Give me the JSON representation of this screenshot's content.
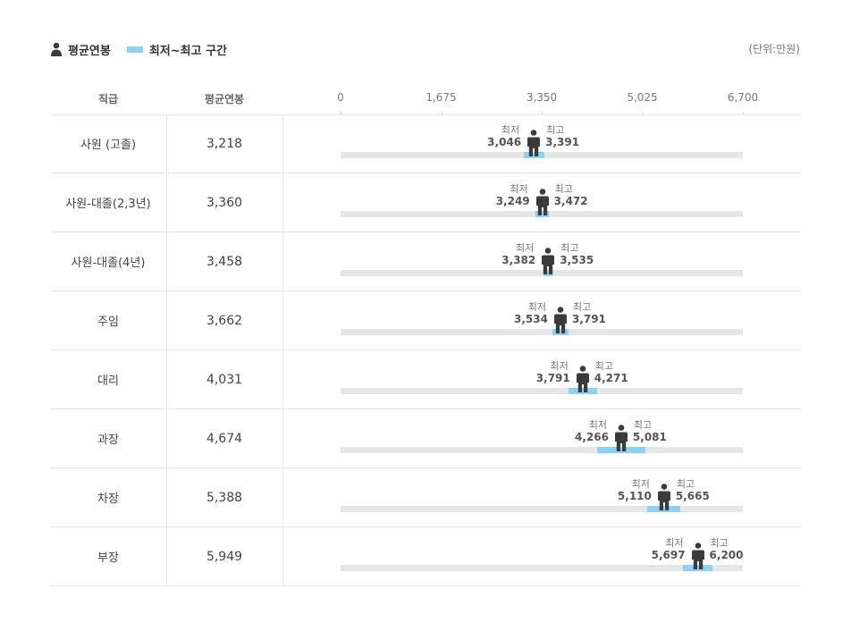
{
  "legend": {
    "avg_label": "평균연봉",
    "range_label": "최저~최고 구간"
  },
  "unit": "(단위:만원)",
  "header": {
    "col_grade": "직급",
    "col_avg": "평균연봉"
  },
  "labels": {
    "min": "최저",
    "max": "최고"
  },
  "colors": {
    "range": "#8fd0f5",
    "track": "#e6e6e6",
    "figure": "#3b3b3b"
  },
  "icons": {
    "avg": "person-icon"
  },
  "chart_data": {
    "type": "bar",
    "x_ticks": [
      0,
      1675,
      3350,
      5025,
      6700
    ],
    "x_tick_labels": [
      "0",
      "1,675",
      "3,350",
      "5,025",
      "6,700"
    ],
    "xlim": [
      0,
      6700
    ],
    "categories": [
      "사원 (고졸)",
      "사원-대졸(2,3년)",
      "사원-대졸(4년)",
      "주임",
      "대리",
      "과장",
      "차장",
      "부장"
    ],
    "avg": [
      3218,
      3360,
      3458,
      3662,
      4031,
      4674,
      5388,
      5949
    ],
    "avg_labels": [
      "3,218",
      "3,360",
      "3,458",
      "3,662",
      "4,031",
      "4,674",
      "5,388",
      "5,949"
    ],
    "min": [
      3046,
      3249,
      3382,
      3534,
      3791,
      4266,
      5110,
      5697
    ],
    "min_labels": [
      "3,046",
      "3,249",
      "3,382",
      "3,534",
      "3,791",
      "4,266",
      "5,110",
      "5,697"
    ],
    "max": [
      3391,
      3472,
      3535,
      3791,
      4271,
      5081,
      5665,
      6200
    ],
    "max_labels": [
      "3,391",
      "3,472",
      "3,535",
      "3,791",
      "4,271",
      "5,081",
      "5,665",
      "6,200"
    ]
  }
}
